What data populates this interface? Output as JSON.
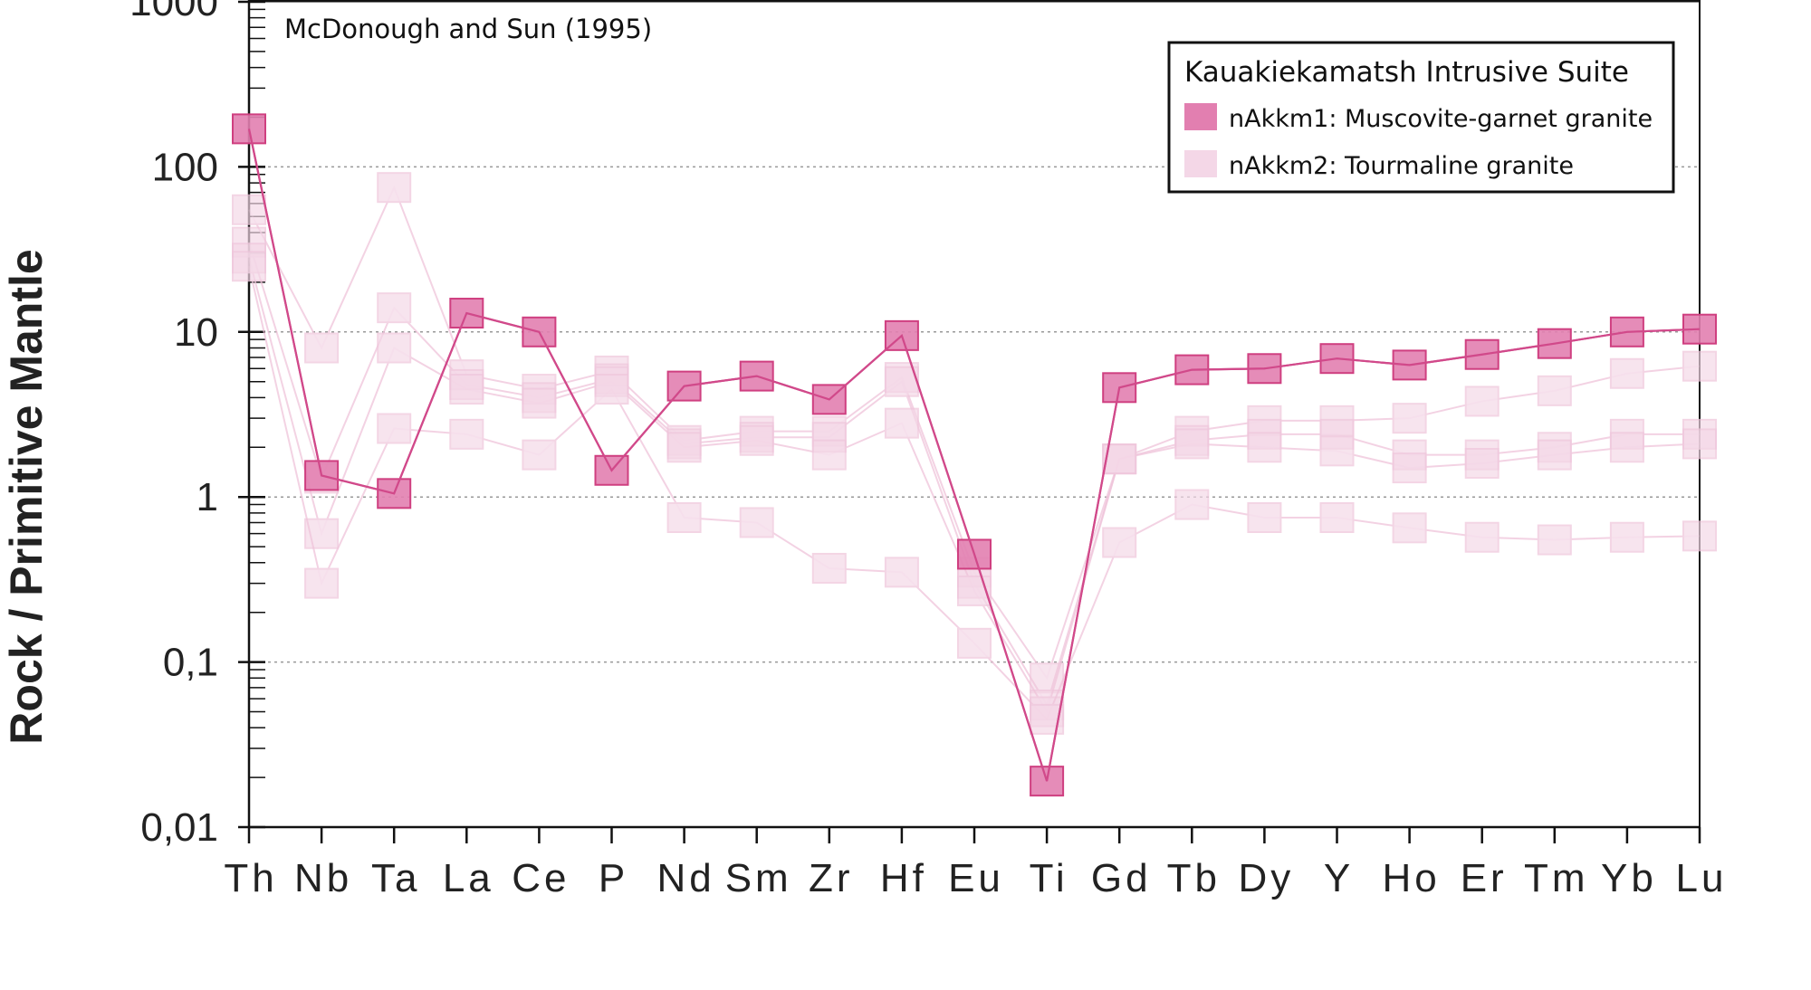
{
  "chart_data": {
    "type": "line",
    "title": "",
    "annotation": "McDonough and Sun (1995)",
    "ylabel": "Rock / Primitive Mantle",
    "xlabel": "",
    "yscale": "log",
    "ylim": [
      0.01,
      1000
    ],
    "yticks": [
      "0,01",
      "0,1",
      "1",
      "10",
      "100",
      "1000"
    ],
    "grid": "horizontal dotted at decades",
    "categories": [
      "Th",
      "Nb",
      "Ta",
      "La",
      "Ce",
      "P",
      "Nd",
      "Sm",
      "Zr",
      "Hf",
      "Eu",
      "Ti",
      "Gd",
      "Tb",
      "Dy",
      "Y",
      "Ho",
      "Er",
      "Tm",
      "Yb",
      "Lu"
    ],
    "legend": {
      "title": "Kauakiekamatsh Intrusive Suite",
      "placement": "top-right",
      "entries": [
        {
          "label": "nAkkm1: Muscovite-garnet granite",
          "color": "#e27fb0"
        },
        {
          "label": "nAkkm2: Tourmaline granite",
          "color": "#f4d7e7"
        }
      ]
    },
    "series": [
      {
        "group": "nAkkm2",
        "values": [
          55,
          8,
          75,
          5.5,
          4.5,
          5.8,
          2.2,
          2.5,
          2.5,
          5.3,
          0.35,
          0.08,
          1.7,
          2.5,
          2.9,
          2.9,
          3.0,
          3.8,
          4.4,
          5.6,
          6.2
        ]
      },
      {
        "group": "nAkkm2",
        "values": [
          35,
          1.3,
          14,
          4.8,
          4.0,
          5.2,
          2.1,
          2.3,
          2.3,
          5.0,
          0.3,
          0.055,
          1.7,
          2.2,
          2.4,
          2.4,
          1.8,
          1.8,
          2.0,
          2.4,
          2.4
        ]
      },
      {
        "group": "nAkkm2",
        "values": [
          28,
          0.6,
          8,
          4.5,
          3.7,
          5.0,
          2.0,
          2.2,
          1.8,
          2.8,
          0.27,
          0.05,
          1.7,
          2.1,
          2.0,
          1.9,
          1.5,
          1.6,
          1.8,
          2.0,
          2.1
        ]
      },
      {
        "group": "nAkkm2",
        "values": [
          25,
          0.3,
          2.6,
          2.4,
          1.8,
          4.5,
          0.75,
          0.7,
          0.37,
          0.35,
          0.13,
          0.045,
          0.53,
          0.9,
          0.75,
          0.75,
          0.65,
          0.57,
          0.55,
          0.57,
          0.58
        ]
      },
      {
        "group": "nAkkm1",
        "values": [
          170,
          1.35,
          1.05,
          13,
          10,
          1.45,
          4.7,
          5.4,
          3.9,
          9.5,
          0.45,
          0.019,
          4.6,
          5.9,
          6.0,
          6.9,
          6.3,
          7.3,
          8.5,
          10,
          10.4
        ]
      }
    ]
  }
}
